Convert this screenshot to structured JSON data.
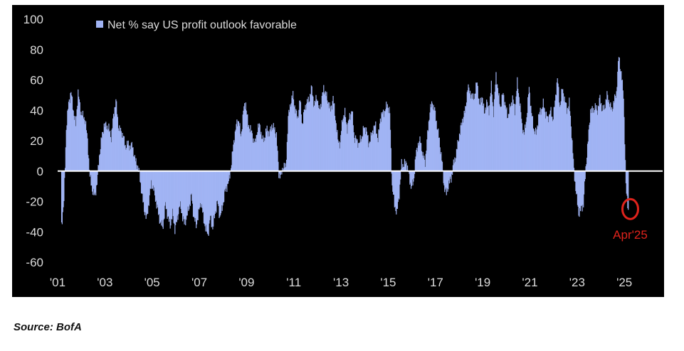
{
  "chart_data": {
    "type": "bar",
    "title": "",
    "xlabel": "",
    "ylabel": "",
    "ylim": [
      -60,
      100
    ],
    "yticks": [
      100,
      80,
      60,
      40,
      20,
      0,
      -20,
      -40,
      -60
    ],
    "xlim": [
      2001.0,
      2026.2
    ],
    "xticks": [
      {
        "value": 2001,
        "label": "'01"
      },
      {
        "value": 2003,
        "label": "'03"
      },
      {
        "value": 2005,
        "label": "'05"
      },
      {
        "value": 2007,
        "label": "'07"
      },
      {
        "value": 2009,
        "label": "'09"
      },
      {
        "value": 2011,
        "label": "'11"
      },
      {
        "value": 2013,
        "label": "'13"
      },
      {
        "value": 2015,
        "label": "'15"
      },
      {
        "value": 2017,
        "label": "'17"
      },
      {
        "value": 2019,
        "label": "'19"
      },
      {
        "value": 2021,
        "label": "'21"
      },
      {
        "value": 2023,
        "label": "'23"
      },
      {
        "value": 2025,
        "label": "'25"
      }
    ],
    "legend": {
      "label": "Net % say US profit outlook favorable",
      "placement": "top-left"
    },
    "annotation": {
      "label": "Apr'25",
      "x": 2025.25,
      "y": -25
    },
    "series": [
      {
        "name": "Net % say US profit outlook favorable",
        "anchors": [
          [
            2001.15,
            -35
          ],
          [
            2001.25,
            -20
          ],
          [
            2001.35,
            28
          ],
          [
            2001.45,
            45
          ],
          [
            2001.55,
            52
          ],
          [
            2001.65,
            40
          ],
          [
            2001.75,
            30
          ],
          [
            2001.85,
            52
          ],
          [
            2001.95,
            40
          ],
          [
            2002.05,
            36
          ],
          [
            2002.15,
            34
          ],
          [
            2002.25,
            20
          ],
          [
            2002.35,
            -4
          ],
          [
            2002.45,
            -12
          ],
          [
            2002.55,
            -17
          ],
          [
            2002.65,
            -8
          ],
          [
            2002.75,
            10
          ],
          [
            2002.85,
            22
          ],
          [
            2002.95,
            30
          ],
          [
            2003.05,
            30
          ],
          [
            2003.15,
            28
          ],
          [
            2003.25,
            22
          ],
          [
            2003.35,
            36
          ],
          [
            2003.45,
            47
          ],
          [
            2003.55,
            30
          ],
          [
            2003.65,
            26
          ],
          [
            2003.75,
            24
          ],
          [
            2003.85,
            16
          ],
          [
            2003.95,
            18
          ],
          [
            2004.05,
            16
          ],
          [
            2004.15,
            17
          ],
          [
            2004.25,
            8
          ],
          [
            2004.35,
            4
          ],
          [
            2004.45,
            -2
          ],
          [
            2004.55,
            -15
          ],
          [
            2004.65,
            -25
          ],
          [
            2004.75,
            -32
          ],
          [
            2004.85,
            -20
          ],
          [
            2004.95,
            -8
          ],
          [
            2005.05,
            -12
          ],
          [
            2005.15,
            -20
          ],
          [
            2005.25,
            -28
          ],
          [
            2005.35,
            -35
          ],
          [
            2005.45,
            -36
          ],
          [
            2005.55,
            -22
          ],
          [
            2005.65,
            -30
          ],
          [
            2005.75,
            -36
          ],
          [
            2005.85,
            -28
          ],
          [
            2005.95,
            -38
          ],
          [
            2006.05,
            -32
          ],
          [
            2006.15,
            -22
          ],
          [
            2006.25,
            -28
          ],
          [
            2006.35,
            -35
          ],
          [
            2006.45,
            -30
          ],
          [
            2006.55,
            -24
          ],
          [
            2006.65,
            -16
          ],
          [
            2006.75,
            -30
          ],
          [
            2006.85,
            -36
          ],
          [
            2006.95,
            -28
          ],
          [
            2007.05,
            -20
          ],
          [
            2007.15,
            -30
          ],
          [
            2007.25,
            -38
          ],
          [
            2007.35,
            -42
          ],
          [
            2007.45,
            -30
          ],
          [
            2007.55,
            -38
          ],
          [
            2007.65,
            -28
          ],
          [
            2007.75,
            -20
          ],
          [
            2007.85,
            -30
          ],
          [
            2007.95,
            -25
          ],
          [
            2008.05,
            -15
          ],
          [
            2008.15,
            -10
          ],
          [
            2008.25,
            -6
          ],
          [
            2008.35,
            6
          ],
          [
            2008.45,
            20
          ],
          [
            2008.55,
            30
          ],
          [
            2008.65,
            34
          ],
          [
            2008.75,
            22
          ],
          [
            2008.85,
            40
          ],
          [
            2008.95,
            45
          ],
          [
            2009.05,
            30
          ],
          [
            2009.15,
            28
          ],
          [
            2009.25,
            22
          ],
          [
            2009.35,
            18
          ],
          [
            2009.45,
            28
          ],
          [
            2009.55,
            30
          ],
          [
            2009.65,
            20
          ],
          [
            2009.75,
            22
          ],
          [
            2009.85,
            28
          ],
          [
            2009.95,
            24
          ],
          [
            2010.05,
            30
          ],
          [
            2010.15,
            28
          ],
          [
            2010.25,
            24
          ],
          [
            2010.35,
            -2
          ],
          [
            2010.45,
            -3
          ],
          [
            2010.55,
            4
          ],
          [
            2010.65,
            2
          ],
          [
            2010.75,
            35
          ],
          [
            2010.85,
            45
          ],
          [
            2010.95,
            50
          ],
          [
            2011.05,
            40
          ],
          [
            2011.15,
            35
          ],
          [
            2011.25,
            47
          ],
          [
            2011.35,
            30
          ],
          [
            2011.45,
            42
          ],
          [
            2011.55,
            45
          ],
          [
            2011.65,
            48
          ],
          [
            2011.75,
            55
          ],
          [
            2011.85,
            42
          ],
          [
            2011.95,
            50
          ],
          [
            2012.05,
            40
          ],
          [
            2012.15,
            45
          ],
          [
            2012.25,
            55
          ],
          [
            2012.35,
            50
          ],
          [
            2012.45,
            45
          ],
          [
            2012.55,
            40
          ],
          [
            2012.65,
            48
          ],
          [
            2012.75,
            35
          ],
          [
            2012.85,
            20
          ],
          [
            2012.95,
            18
          ],
          [
            2013.05,
            35
          ],
          [
            2013.15,
            38
          ],
          [
            2013.25,
            28
          ],
          [
            2013.35,
            36
          ],
          [
            2013.45,
            40
          ],
          [
            2013.55,
            22
          ],
          [
            2013.65,
            20
          ],
          [
            2013.75,
            18
          ],
          [
            2013.85,
            22
          ],
          [
            2013.95,
            28
          ],
          [
            2014.05,
            28
          ],
          [
            2014.15,
            18
          ],
          [
            2014.25,
            22
          ],
          [
            2014.35,
            28
          ],
          [
            2014.45,
            30
          ],
          [
            2014.55,
            20
          ],
          [
            2014.65,
            35
          ],
          [
            2014.75,
            38
          ],
          [
            2014.85,
            40
          ],
          [
            2014.95,
            44
          ],
          [
            2015.05,
            38
          ],
          [
            2015.15,
            -10
          ],
          [
            2015.25,
            -22
          ],
          [
            2015.35,
            -28
          ],
          [
            2015.45,
            -15
          ],
          [
            2015.55,
            5
          ],
          [
            2015.65,
            4
          ],
          [
            2015.75,
            6
          ],
          [
            2015.85,
            -2
          ],
          [
            2015.95,
            -10
          ],
          [
            2016.05,
            -8
          ],
          [
            2016.15,
            10
          ],
          [
            2016.25,
            18
          ],
          [
            2016.35,
            20
          ],
          [
            2016.45,
            10
          ],
          [
            2016.55,
            6
          ],
          [
            2016.65,
            24
          ],
          [
            2016.75,
            40
          ],
          [
            2016.85,
            45
          ],
          [
            2016.95,
            40
          ],
          [
            2017.05,
            30
          ],
          [
            2017.15,
            20
          ],
          [
            2017.25,
            8
          ],
          [
            2017.35,
            -10
          ],
          [
            2017.45,
            -15
          ],
          [
            2017.55,
            -8
          ],
          [
            2017.65,
            -5
          ],
          [
            2017.75,
            5
          ],
          [
            2017.85,
            10
          ],
          [
            2017.95,
            20
          ],
          [
            2018.05,
            28
          ],
          [
            2018.15,
            35
          ],
          [
            2018.25,
            40
          ],
          [
            2018.35,
            55
          ],
          [
            2018.45,
            52
          ],
          [
            2018.55,
            48
          ],
          [
            2018.65,
            50
          ],
          [
            2018.75,
            60
          ],
          [
            2018.85,
            42
          ],
          [
            2018.95,
            50
          ],
          [
            2019.05,
            38
          ],
          [
            2019.15,
            45
          ],
          [
            2019.25,
            40
          ],
          [
            2019.35,
            56
          ],
          [
            2019.45,
            38
          ],
          [
            2019.55,
            64
          ],
          [
            2019.65,
            50
          ],
          [
            2019.75,
            42
          ],
          [
            2019.85,
            52
          ],
          [
            2019.95,
            42
          ],
          [
            2020.05,
            36
          ],
          [
            2020.15,
            42
          ],
          [
            2020.25,
            48
          ],
          [
            2020.35,
            40
          ],
          [
            2020.45,
            58
          ],
          [
            2020.55,
            46
          ],
          [
            2020.65,
            30
          ],
          [
            2020.75,
            24
          ],
          [
            2020.85,
            36
          ],
          [
            2020.95,
            55
          ],
          [
            2021.05,
            38
          ],
          [
            2021.15,
            28
          ],
          [
            2021.25,
            24
          ],
          [
            2021.35,
            36
          ],
          [
            2021.45,
            40
          ],
          [
            2021.55,
            44
          ],
          [
            2021.65,
            38
          ],
          [
            2021.75,
            34
          ],
          [
            2021.85,
            40
          ],
          [
            2021.95,
            34
          ],
          [
            2022.05,
            45
          ],
          [
            2022.15,
            62
          ],
          [
            2022.25,
            42
          ],
          [
            2022.35,
            54
          ],
          [
            2022.45,
            48
          ],
          [
            2022.55,
            40
          ],
          [
            2022.65,
            45
          ],
          [
            2022.75,
            25
          ],
          [
            2022.85,
            0
          ],
          [
            2022.95,
            -15
          ],
          [
            2023.05,
            -28
          ],
          [
            2023.15,
            -25
          ],
          [
            2023.25,
            -22
          ],
          [
            2023.35,
            2
          ],
          [
            2023.45,
            20
          ],
          [
            2023.55,
            40
          ],
          [
            2023.65,
            40
          ],
          [
            2023.75,
            42
          ],
          [
            2023.85,
            40
          ],
          [
            2023.95,
            48
          ],
          [
            2024.05,
            40
          ],
          [
            2024.15,
            42
          ],
          [
            2024.25,
            50
          ],
          [
            2024.35,
            45
          ],
          [
            2024.45,
            40
          ],
          [
            2024.55,
            46
          ],
          [
            2024.65,
            52
          ],
          [
            2024.75,
            76
          ],
          [
            2024.85,
            64
          ],
          [
            2024.95,
            50
          ],
          [
            2025.05,
            -10
          ],
          [
            2025.15,
            -25
          ]
        ]
      }
    ]
  },
  "colors": {
    "bar": "#a1b4f4",
    "panel": "#000000",
    "axis_text": "#dcdcdc",
    "zero_line": "#ffffff",
    "annotation": "#e0231c"
  },
  "source": "Source: BofA"
}
